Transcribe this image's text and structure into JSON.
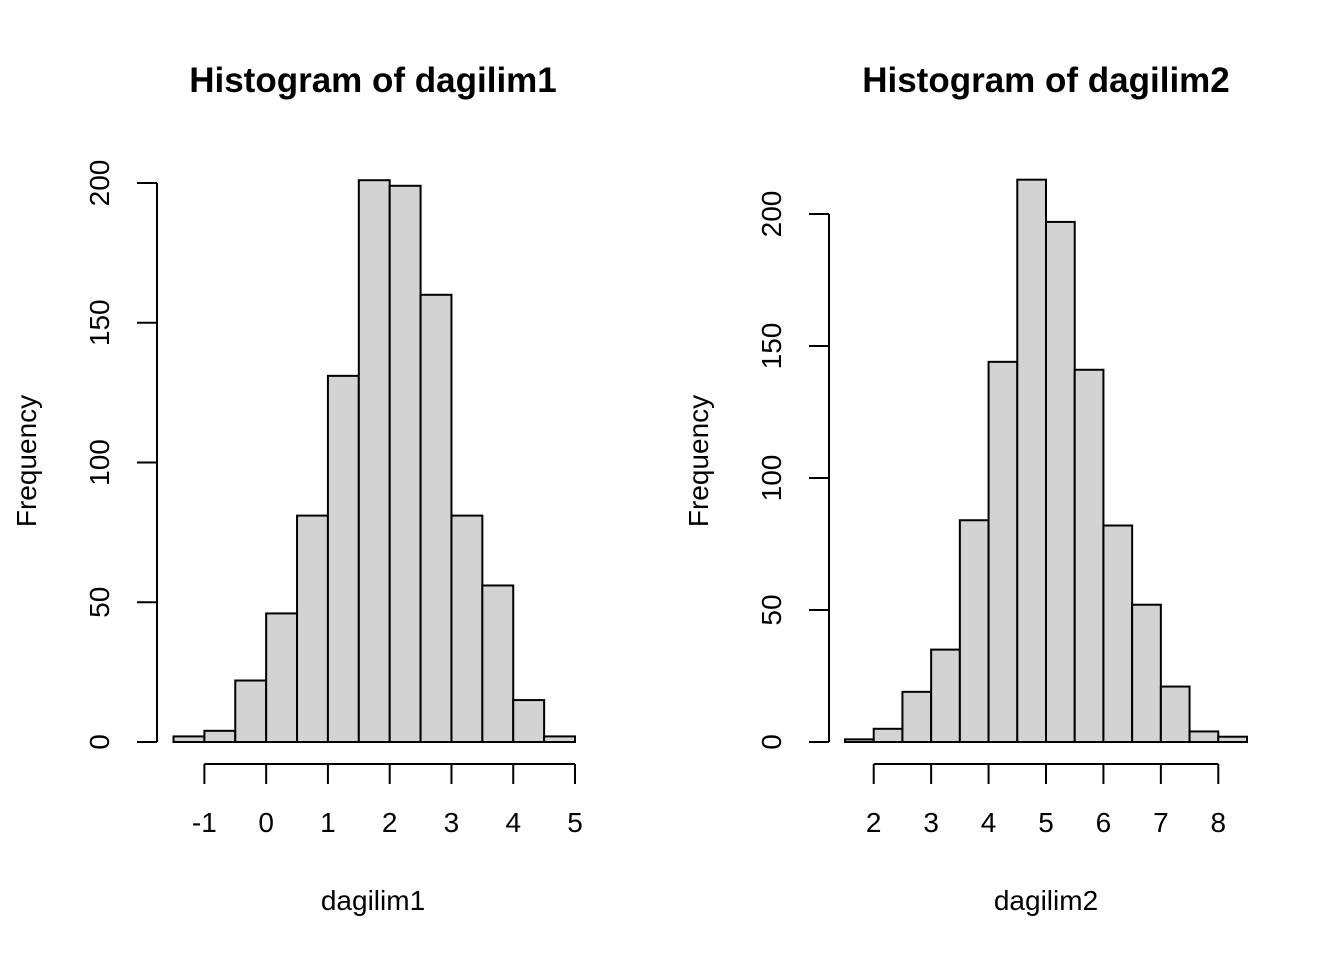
{
  "chart_data": [
    {
      "type": "bar",
      "title": "Histogram of dagilim1",
      "xlabel": "dagilim1",
      "ylabel": "Frequency",
      "bin_edges": [
        -1.5,
        -1.0,
        -0.5,
        0.0,
        0.5,
        1.0,
        1.5,
        2.0,
        2.5,
        3.0,
        3.5,
        4.0,
        4.5,
        5.0
      ],
      "values": [
        2,
        4,
        22,
        46,
        81,
        131,
        201,
        199,
        160,
        81,
        56,
        15,
        2
      ],
      "xlim": [
        -1.5,
        5.0
      ],
      "ylim": [
        0,
        200
      ],
      "x_ticks": [
        -1,
        0,
        1,
        2,
        3,
        4,
        5
      ],
      "x_tick_labels": [
        "-1",
        "0",
        "1",
        "2",
        "3",
        "4",
        "5"
      ],
      "y_ticks": [
        0,
        50,
        100,
        150,
        200
      ],
      "y_tick_labels": [
        "0",
        "50",
        "100",
        "150",
        "200"
      ],
      "bar_color": "#d3d3d3",
      "grid": false
    },
    {
      "type": "bar",
      "title": "Histogram of dagilim2",
      "xlabel": "dagilim2",
      "ylabel": "Frequency",
      "bin_edges": [
        1.5,
        2.0,
        2.5,
        3.0,
        3.5,
        4.0,
        4.5,
        5.0,
        5.5,
        6.0,
        6.5,
        7.0,
        7.5,
        8.0,
        8.5
      ],
      "values": [
        1,
        5,
        19,
        35,
        84,
        144,
        213,
        197,
        141,
        82,
        52,
        21,
        4,
        2
      ],
      "xlim": [
        1.5,
        8.5
      ],
      "ylim": [
        0,
        200
      ],
      "x_ticks": [
        2,
        3,
        4,
        5,
        6,
        7,
        8
      ],
      "x_tick_labels": [
        "2",
        "3",
        "4",
        "5",
        "6",
        "7",
        "8"
      ],
      "y_ticks": [
        0,
        50,
        100,
        150,
        200
      ],
      "y_tick_labels": [
        "0",
        "50",
        "100",
        "150",
        "200"
      ],
      "bar_color": "#d3d3d3",
      "grid": false
    }
  ]
}
